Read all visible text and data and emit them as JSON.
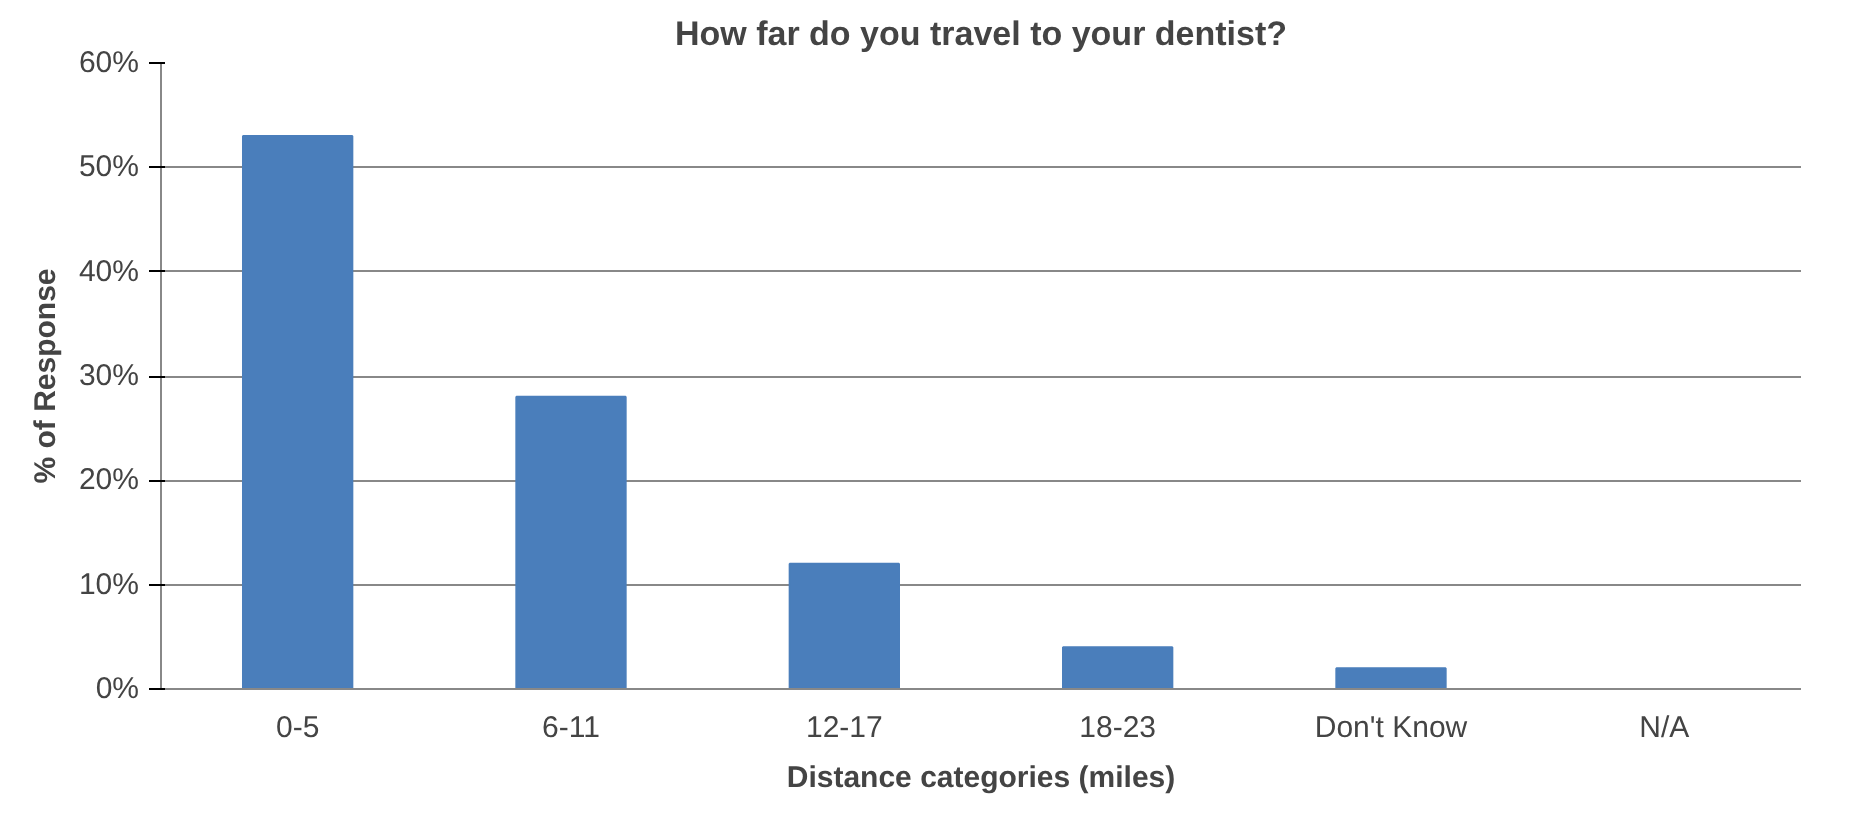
{
  "chart_data": {
    "type": "bar",
    "title": "How far do you travel to your dentist?",
    "xlabel": "Distance categories (miles)",
    "ylabel": "% of Response",
    "categories": [
      "0-5",
      "6-11",
      "12-17",
      "18-23",
      "Don't Know",
      "N/A"
    ],
    "values": [
      53,
      28,
      12,
      4,
      2,
      0
    ],
    "color": "#4a7ebb",
    "ylim": [
      0,
      60
    ],
    "yticks": [
      {
        "value": 0,
        "label": "0%"
      },
      {
        "value": 10,
        "label": "10%"
      },
      {
        "value": 20,
        "label": "20%"
      },
      {
        "value": 30,
        "label": "30%"
      },
      {
        "value": 40,
        "label": "40%"
      },
      {
        "value": 50,
        "label": "50%"
      },
      {
        "value": 60,
        "label": "60%"
      }
    ],
    "grid": "y"
  }
}
